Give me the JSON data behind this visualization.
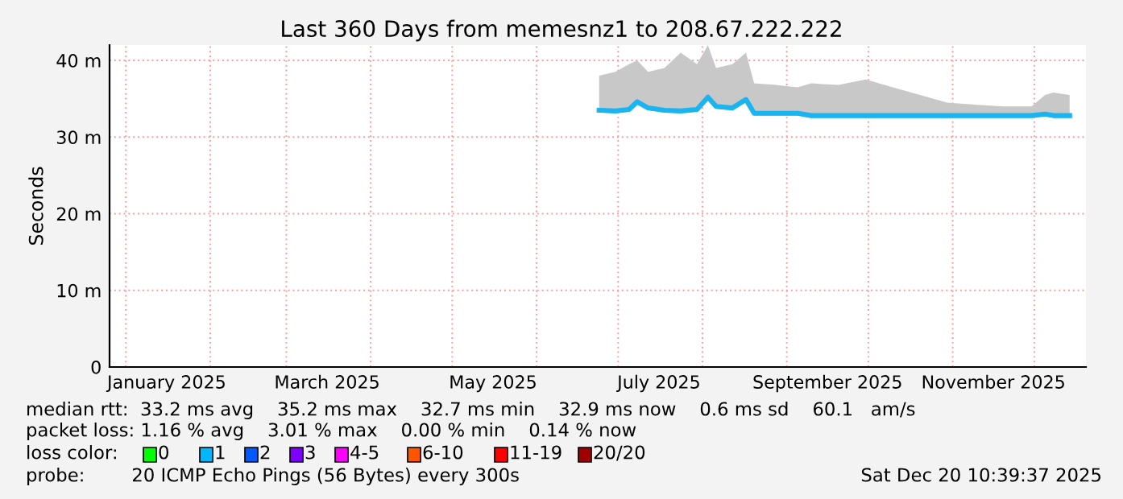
{
  "chart_data": {
    "type": "line",
    "title": "Last 360 Days from memesnz1 to 208.67.222.222",
    "ylabel": "Seconds",
    "x": [
      "2025-06-24",
      "2025-06-30",
      "2025-07-05",
      "2025-07-08",
      "2025-07-12",
      "2025-07-18",
      "2025-07-24",
      "2025-07-30",
      "2025-08-03",
      "2025-08-06",
      "2025-08-12",
      "2025-08-17",
      "2025-08-20",
      "2025-08-28",
      "2025-09-05",
      "2025-09-10",
      "2025-09-20",
      "2025-09-30",
      "2025-10-10",
      "2025-10-20",
      "2025-10-30",
      "2025-11-10",
      "2025-11-20",
      "2025-11-30",
      "2025-12-05",
      "2025-12-08",
      "2025-12-14"
    ],
    "series": [
      {
        "color": "#1ab4f0",
        "values": [
          33.5,
          33.4,
          33.6,
          34.6,
          33.8,
          33.5,
          33.4,
          33.6,
          35.2,
          34.0,
          33.8,
          34.9,
          33.1,
          33.1,
          33.1,
          32.8,
          32.8,
          32.8,
          32.8,
          32.8,
          32.8,
          32.8,
          32.8,
          32.8,
          33.0,
          32.8,
          32.8
        ],
        "lower": [
          33.2,
          33.1,
          33.3,
          34.3,
          33.5,
          33.2,
          33.1,
          33.3,
          34.9,
          33.7,
          33.5,
          34.6,
          32.8,
          32.8,
          32.8,
          32.5,
          32.5,
          32.5,
          32.5,
          32.5,
          32.5,
          32.5,
          32.5,
          32.5,
          32.7,
          32.5,
          32.5
        ],
        "upper": [
          38.0,
          38.5,
          39.5,
          40.0,
          38.5,
          39.0,
          41.0,
          39.5,
          42.0,
          39.0,
          39.5,
          41.0,
          37.0,
          36.8,
          36.5,
          37.0,
          36.8,
          37.5,
          36.5,
          35.5,
          34.5,
          34.2,
          34.0,
          34.0,
          35.5,
          35.8,
          35.5
        ]
      }
    ],
    "xlim": [
      "2024-12-26",
      "2025-12-20"
    ],
    "xticks": [
      {
        "value": "2025-01-01",
        "label": null
      },
      {
        "value": "2025-01-16",
        "label": "January 2025"
      },
      {
        "value": "2025-02-01",
        "label": null
      },
      {
        "value": "2025-03-01",
        "label": null
      },
      {
        "value": "2025-03-16",
        "label": "March 2025"
      },
      {
        "value": "2025-04-01",
        "label": null
      },
      {
        "value": "2025-05-01",
        "label": null
      },
      {
        "value": "2025-05-16",
        "label": "May 2025"
      },
      {
        "value": "2025-06-01",
        "label": null
      },
      {
        "value": "2025-07-01",
        "label": null
      },
      {
        "value": "2025-07-16",
        "label": "July 2025"
      },
      {
        "value": "2025-08-01",
        "label": null
      },
      {
        "value": "2025-09-01",
        "label": null
      },
      {
        "value": "2025-09-16",
        "label": "September 2025"
      },
      {
        "value": "2025-10-01",
        "label": null
      },
      {
        "value": "2025-11-01",
        "label": null
      },
      {
        "value": "2025-11-16",
        "label": "November 2025"
      },
      {
        "value": "2025-12-01",
        "label": null
      }
    ],
    "ylim": [
      0,
      42
    ],
    "yticks": [
      0,
      {
        "value": 10,
        "label": "10 m"
      },
      {
        "value": 20,
        "label": "20 m"
      },
      {
        "value": 30,
        "label": "30 m"
      },
      {
        "value": 40,
        "label": "40 m"
      }
    ],
    "grid": true,
    "annotations": [
      "median rtt:  33.2 ms avg    35.2 ms max    32.7 ms min    32.9 ms now    0.6 ms sd    60.1   am/s",
      "packet loss: 1.16 % avg    3.01 % max    0.00 % min    0.14 % now",
      "loss color:",
      "0",
      "1",
      "2",
      "3",
      "4-5",
      "6-10",
      "11-19",
      "20/20",
      "probe:        20 ICMP Echo Pings (56 Bytes) every 300s",
      "Sat Dec 20 10:39:37 2025"
    ]
  }
}
